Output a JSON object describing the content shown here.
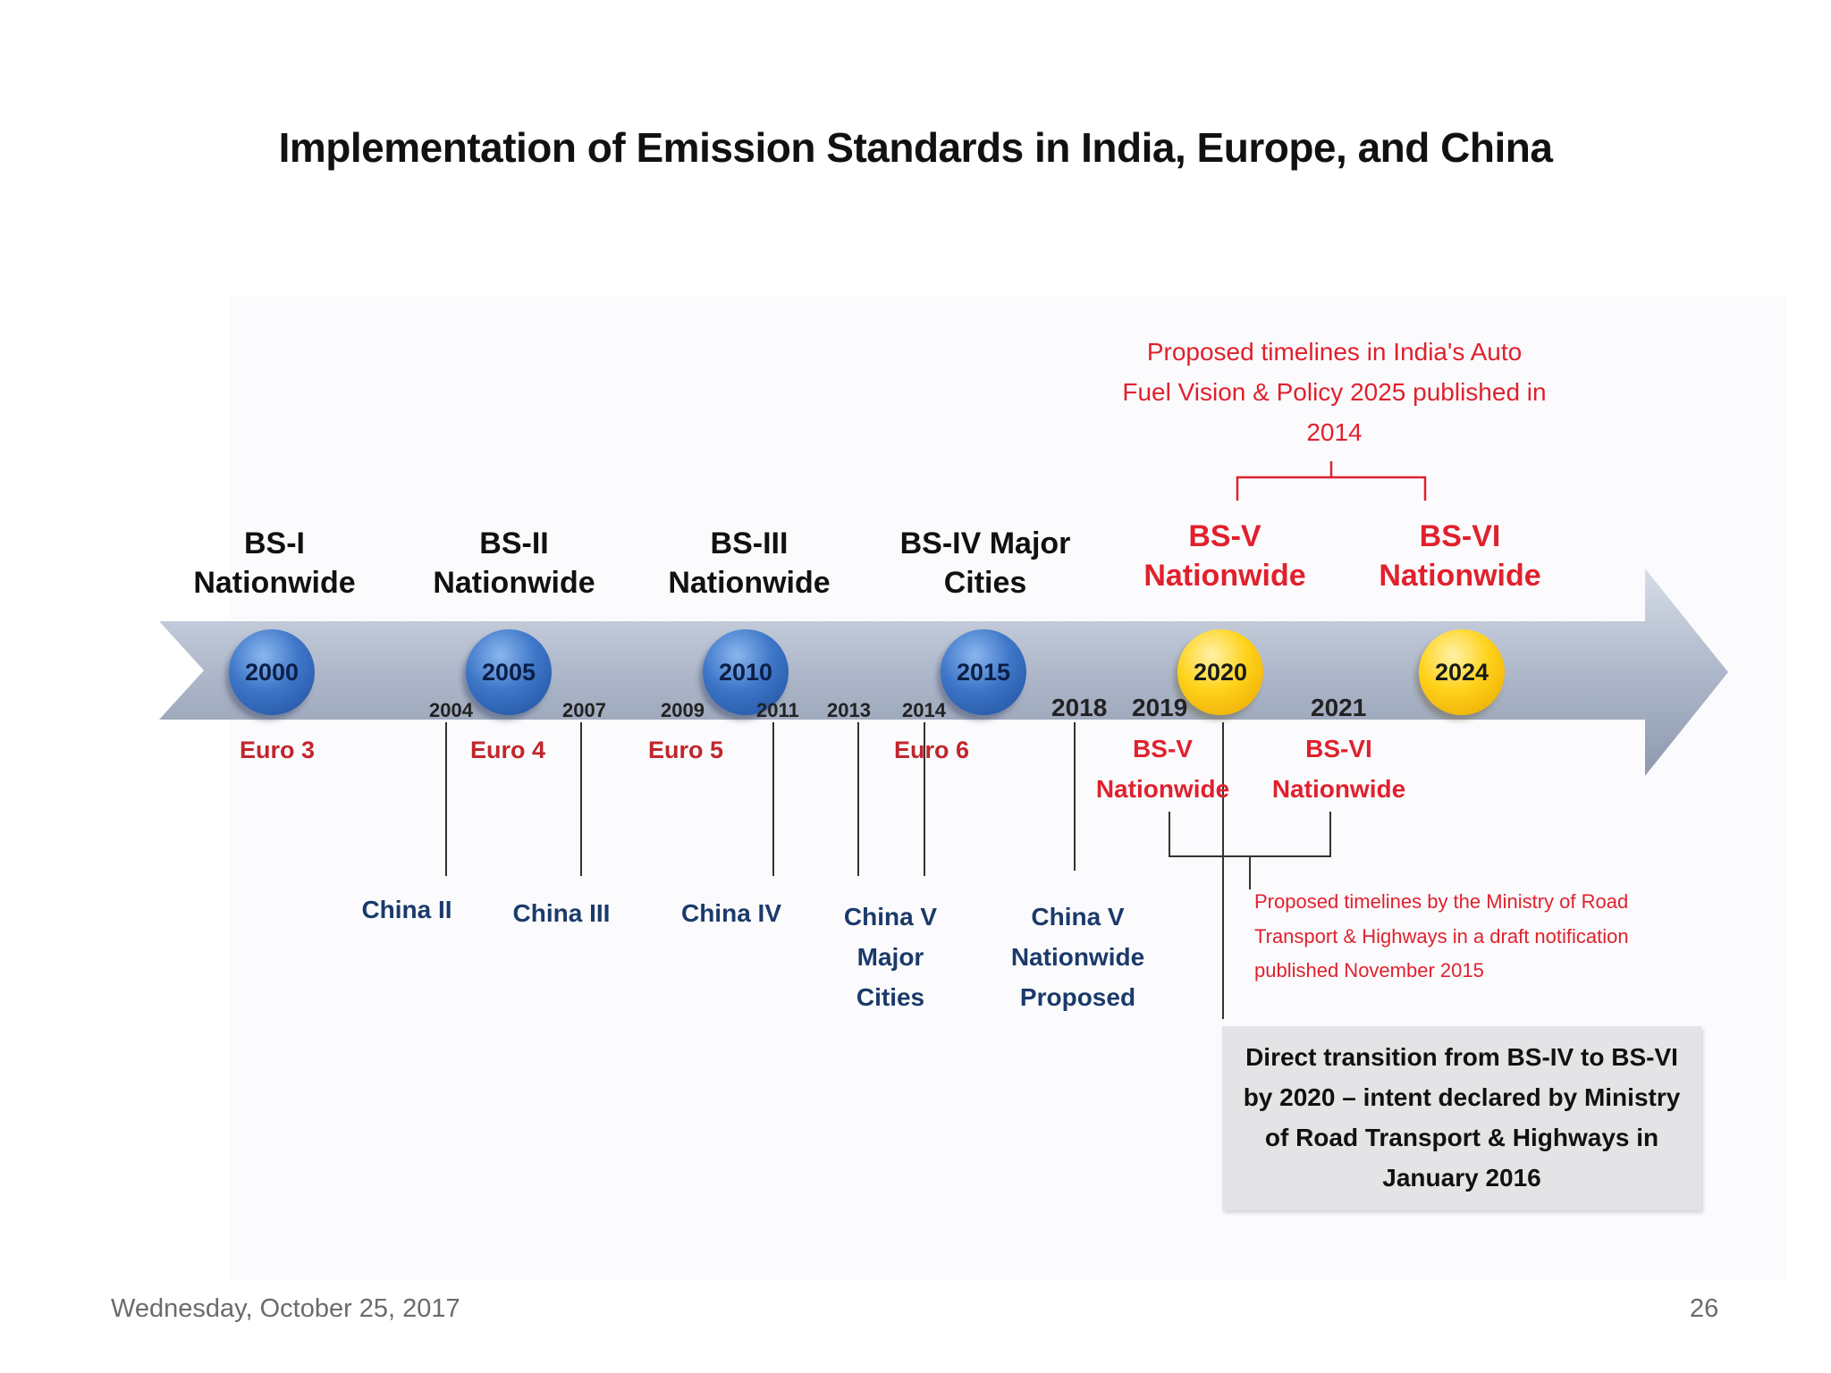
{
  "slide": {
    "title": "Implementation of Emission Standards in  India, Europe, and China",
    "footer_date": "Wednesday, October 25, 2017",
    "page_number": "26"
  },
  "india_milestones": [
    {
      "label": "BS-I Nationwide",
      "year": "2000",
      "color": "blue"
    },
    {
      "label": "BS-II Nationwide",
      "year": "2005",
      "color": "blue"
    },
    {
      "label": "BS-III Nationwide",
      "year": "2010",
      "color": "blue"
    },
    {
      "label": "BS-IV Major Cities",
      "year": "2015",
      "color": "blue"
    },
    {
      "label": "BS-V Nationwide",
      "year": "2020",
      "color": "gold"
    },
    {
      "label": "BS-VI Nationwide",
      "year": "2024",
      "color": "gold"
    }
  ],
  "europe": [
    "Euro 3",
    "Euro 4",
    "Euro 5",
    "Euro 6"
  ],
  "china_years": [
    "2004",
    "2007",
    "2009",
    "2011",
    "2013",
    "2014",
    "2018"
  ],
  "china": [
    "China II",
    "China III",
    "China IV",
    "China V Major Cities",
    "China V Nationwide Proposed"
  ],
  "ministry_proposal": {
    "years": [
      "2019",
      "2021"
    ],
    "labels": [
      "BS-V Nationwide",
      "BS-VI Nationwide"
    ],
    "note": "Proposed timelines by the Ministry of Road Transport  & Highways in a draft notification published November 2015"
  },
  "auto_fuel_note": "Proposed timelines in India's Auto Fuel Vision & Policy 2025 published in 2014",
  "direct_transition_note": "Direct transition from BS-IV to BS-VI by 2020 – intent declared by Ministry of Road Transport & Highways in January 2016",
  "colors": {
    "accent_red": "#e0212d",
    "circle_blue": "#2f63b3",
    "circle_gold": "#ffd21a",
    "arrow": "#aab4c6"
  }
}
